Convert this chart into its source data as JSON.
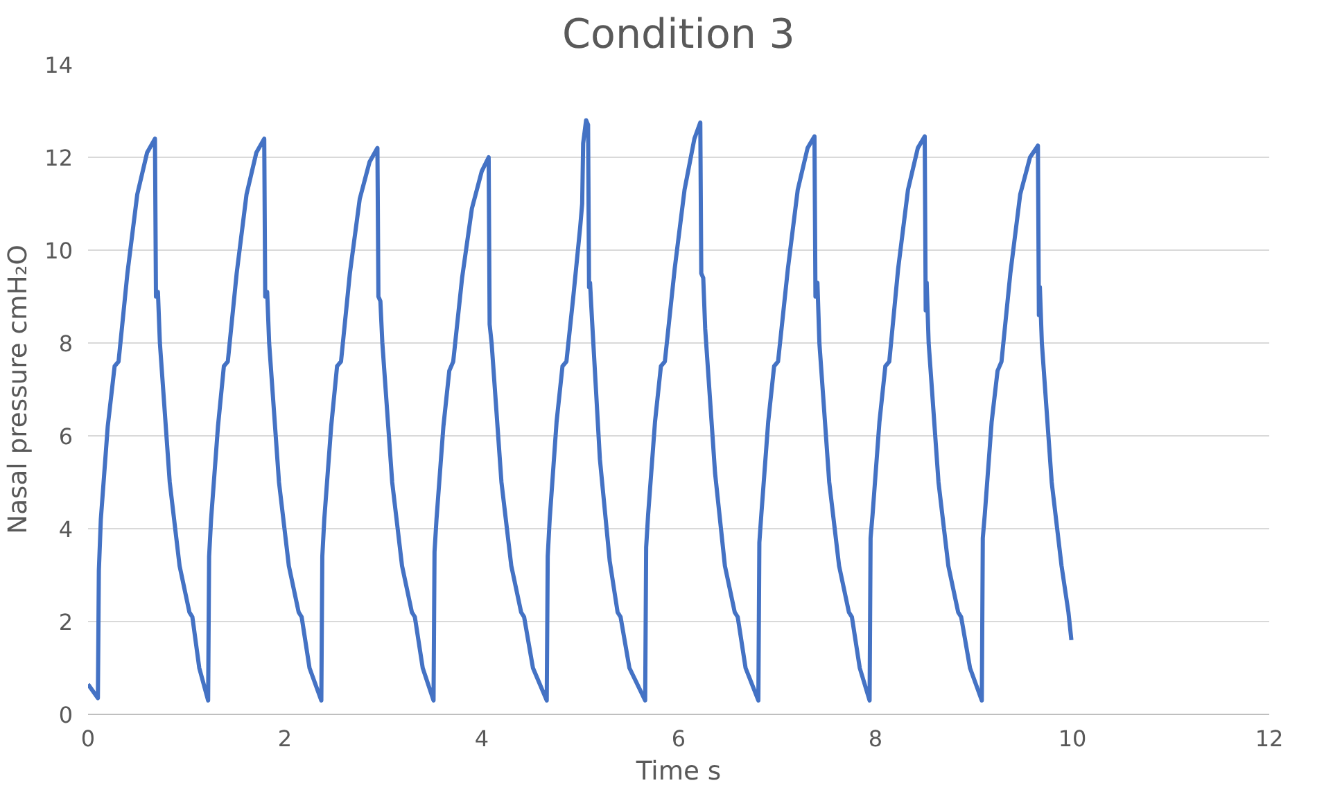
{
  "chart_data": {
    "type": "line",
    "title": "Condition 3",
    "xlabel": "Time s",
    "ylabel": "Nasal pressure cmH₂O",
    "xlim": [
      0,
      12
    ],
    "xticks": [
      0,
      2,
      4,
      6,
      8,
      10,
      12
    ],
    "ylim": [
      0,
      14
    ],
    "yticks": [
      0,
      2,
      4,
      6,
      8,
      10,
      12,
      14
    ],
    "grid": "y",
    "series": [
      {
        "color": "#4472c4",
        "x": [
          0,
          0.1,
          0.11,
          0.13,
          0.2,
          0.27,
          0.31,
          0.4,
          0.5,
          0.6,
          0.68,
          0.69,
          0.71,
          0.73,
          0.83,
          0.93,
          1.03,
          1.06,
          1.13,
          1.22,
          1.23,
          1.25,
          1.32,
          1.38,
          1.42,
          1.51,
          1.61,
          1.71,
          1.79,
          1.8,
          1.82,
          1.84,
          1.94,
          2.04,
          2.14,
          2.17,
          2.25,
          2.37,
          2.38,
          2.4,
          2.47,
          2.53,
          2.57,
          2.66,
          2.76,
          2.86,
          2.94,
          2.95,
          2.97,
          2.99,
          3.09,
          3.19,
          3.29,
          3.32,
          3.4,
          3.51,
          3.52,
          3.54,
          3.61,
          3.67,
          3.71,
          3.8,
          3.9,
          4.0,
          4.07,
          4.08,
          4.1,
          4.2,
          4.3,
          4.4,
          4.43,
          4.52,
          4.66,
          4.67,
          4.69,
          4.76,
          4.82,
          4.86,
          4.93,
          5.0,
          5.02,
          5.03,
          5.06,
          5.08,
          5.09,
          5.1,
          5.12,
          5.2,
          5.3,
          5.38,
          5.41,
          5.5,
          5.66,
          5.67,
          5.69,
          5.76,
          5.82,
          5.86,
          5.96,
          6.06,
          6.16,
          6.22,
          6.23,
          6.25,
          6.27,
          6.37,
          6.47,
          6.57,
          6.6,
          6.68,
          6.81,
          6.82,
          6.84,
          6.91,
          6.97,
          7.01,
          7.11,
          7.21,
          7.31,
          7.38,
          7.39,
          7.41,
          7.43,
          7.53,
          7.63,
          7.73,
          7.76,
          7.84,
          7.94,
          7.95,
          7.97,
          8.04,
          8.1,
          8.14,
          8.23,
          8.33,
          8.43,
          8.5,
          8.51,
          8.52,
          8.54,
          8.64,
          8.74,
          8.84,
          8.87,
          8.96,
          9.08,
          9.09,
          9.11,
          9.18,
          9.24,
          9.28,
          9.37,
          9.47,
          9.57,
          9.65,
          9.66,
          9.67,
          9.69,
          9.79,
          9.89,
          9.96,
          9.97,
          9.99
        ],
        "values": [
          0.65,
          0.35,
          3.1,
          4.2,
          6.2,
          7.5,
          7.6,
          9.5,
          11.2,
          12.1,
          12.4,
          9.0,
          9.1,
          8.0,
          5.0,
          3.2,
          2.2,
          2.1,
          1.0,
          0.3,
          3.4,
          4.2,
          6.2,
          7.5,
          7.6,
          9.5,
          11.2,
          12.1,
          12.4,
          9.0,
          9.1,
          8.0,
          5.0,
          3.2,
          2.2,
          2.1,
          1.0,
          0.3,
          3.4,
          4.2,
          6.2,
          7.5,
          7.6,
          9.5,
          11.1,
          11.9,
          12.2,
          9.0,
          8.9,
          8.0,
          5.0,
          3.2,
          2.2,
          2.1,
          1.0,
          0.3,
          3.5,
          4.2,
          6.2,
          7.4,
          7.6,
          9.4,
          10.9,
          11.7,
          12.0,
          8.4,
          8.0,
          5.0,
          3.2,
          2.2,
          2.1,
          1.0,
          0.3,
          3.4,
          4.2,
          6.3,
          7.5,
          7.6,
          9.0,
          10.5,
          11.0,
          12.3,
          12.8,
          12.7,
          9.2,
          9.3,
          8.5,
          5.5,
          3.3,
          2.2,
          2.1,
          1.0,
          0.3,
          3.6,
          4.3,
          6.3,
          7.5,
          7.6,
          9.6,
          11.3,
          12.4,
          12.75,
          9.5,
          9.4,
          8.3,
          5.2,
          3.2,
          2.2,
          2.1,
          1.0,
          0.3,
          3.7,
          4.3,
          6.3,
          7.5,
          7.6,
          9.6,
          11.3,
          12.2,
          12.45,
          9.0,
          9.3,
          8.0,
          5.0,
          3.2,
          2.2,
          2.1,
          1.0,
          0.3,
          3.8,
          4.3,
          6.3,
          7.5,
          7.6,
          9.6,
          11.3,
          12.2,
          12.45,
          8.7,
          9.3,
          8.0,
          5.0,
          3.2,
          2.2,
          2.1,
          1.0,
          0.3,
          3.8,
          4.3,
          6.3,
          7.4,
          7.6,
          9.5,
          11.2,
          12.0,
          12.25,
          8.6,
          9.2,
          8.0,
          5.0,
          3.2,
          2.2,
          2.0,
          1.6
        ]
      }
    ]
  }
}
